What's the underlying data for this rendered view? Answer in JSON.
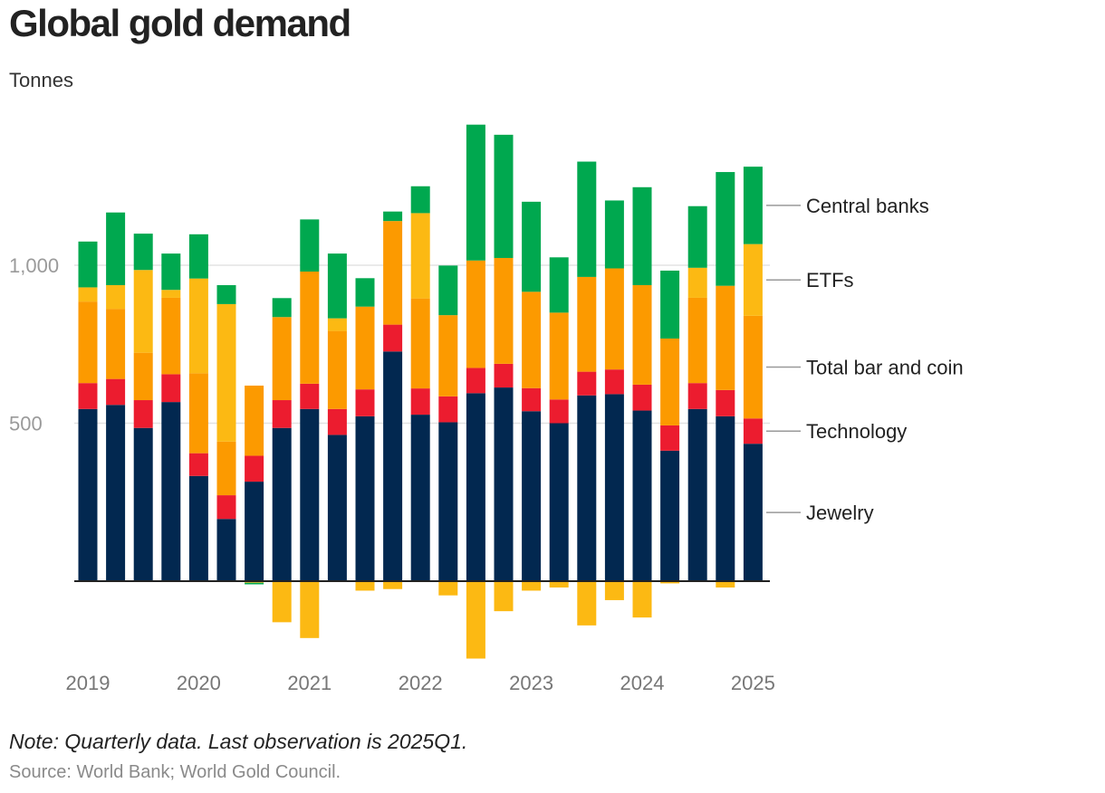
{
  "chart_data": {
    "type": "bar",
    "stacked": true,
    "title": "Global gold demand",
    "ylabel": "Tonnes",
    "ylim": [
      -250,
      1480
    ],
    "y_ticks": [
      500,
      1000
    ],
    "y_tick_labels": [
      "500",
      "1,000"
    ],
    "x_tick_labels": [
      "2019",
      "2020",
      "2021",
      "2022",
      "2023",
      "2024",
      "2025"
    ],
    "x_tick_quarter_index": [
      0,
      4,
      8,
      12,
      16,
      20,
      24
    ],
    "categories": [
      "2019Q1",
      "2019Q2",
      "2019Q3",
      "2019Q4",
      "2020Q1",
      "2020Q2",
      "2020Q3",
      "2020Q4",
      "2021Q1",
      "2021Q2",
      "2021Q3",
      "2021Q4",
      "2022Q1",
      "2022Q2",
      "2022Q3",
      "2022Q4",
      "2023Q1",
      "2023Q2",
      "2023Q3",
      "2023Q4",
      "2024Q1",
      "2024Q2",
      "2024Q3",
      "2024Q4",
      "2025Q1"
    ],
    "series": [
      {
        "name": "Jewelry",
        "color": "#022850",
        "values": [
          545,
          558,
          485,
          567,
          333,
          197,
          315,
          485,
          545,
          463,
          522,
          727,
          527,
          503,
          595,
          613,
          538,
          500,
          588,
          592,
          540,
          413,
          545,
          522,
          435
        ]
      },
      {
        "name": "Technology",
        "color": "#ec1c2f",
        "values": [
          82,
          82,
          88,
          88,
          72,
          75,
          82,
          88,
          80,
          82,
          85,
          85,
          83,
          82,
          80,
          75,
          73,
          75,
          75,
          78,
          82,
          80,
          82,
          83,
          80
        ]
      },
      {
        "name": "Total bar and coin",
        "color": "#fc9a00",
        "values": [
          258,
          222,
          150,
          242,
          253,
          170,
          222,
          263,
          355,
          247,
          262,
          328,
          285,
          257,
          340,
          335,
          305,
          275,
          300,
          320,
          315,
          275,
          270,
          330,
          325
        ]
      },
      {
        "name": "ETFs",
        "color": "#fcb913",
        "values": [
          45,
          75,
          262,
          25,
          300,
          435,
          -5,
          -130,
          -180,
          40,
          -30,
          -25,
          270,
          -45,
          -245,
          -95,
          -30,
          -20,
          -140,
          -60,
          -115,
          -7,
          95,
          -20,
          227
        ]
      },
      {
        "name": "Central banks",
        "color": "#00a84f",
        "values": [
          145,
          230,
          115,
          115,
          140,
          60,
          -5,
          60,
          165,
          205,
          90,
          30,
          85,
          157,
          430,
          390,
          285,
          175,
          365,
          215,
          310,
          215,
          195,
          360,
          245
        ]
      }
    ],
    "legend_position": "right (inline labels)"
  },
  "note": "Note: Quarterly data. Last observation is 2025Q1.",
  "source": "Source: World Bank; World Gold Council."
}
